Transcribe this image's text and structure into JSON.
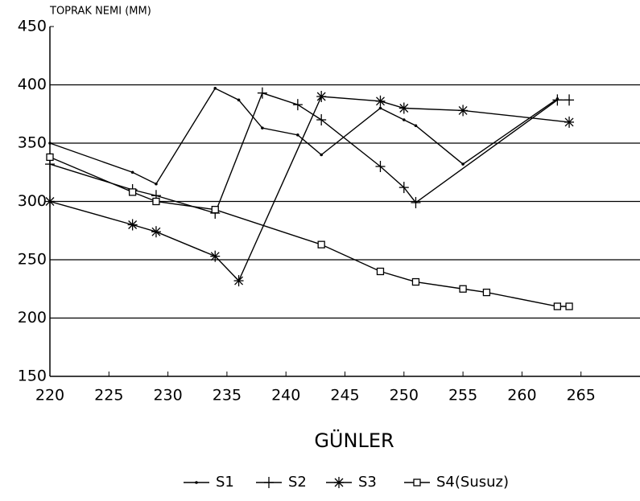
{
  "chart_data": {
    "type": "line",
    "y_axis_label": "TOPRAK NEMI (MM)",
    "x_axis_label": "GÜNLER",
    "xlim": [
      220,
      270
    ],
    "xticks": [
      220,
      225,
      230,
      235,
      240,
      245,
      250,
      255,
      260,
      265
    ],
    "ylim": [
      150,
      450
    ],
    "yticks": [
      150,
      200,
      250,
      300,
      350,
      400,
      450
    ],
    "grid": true,
    "legend": "bottom",
    "series": [
      {
        "name": "S1",
        "color": "#000000",
        "marker": "dot",
        "x": [
          220,
          227,
          229,
          234,
          236,
          238,
          241,
          243,
          248,
          250,
          251,
          255,
          263
        ],
        "values": [
          350,
          325,
          315,
          397,
          387,
          363,
          357,
          340,
          380,
          370,
          365,
          332,
          388
        ]
      },
      {
        "name": "S2",
        "color": "#000000",
        "marker": "plus",
        "x": [
          220,
          227,
          229,
          234,
          238,
          241,
          243,
          248,
          250,
          251,
          263,
          264
        ],
        "values": [
          332,
          310,
          305,
          290,
          393,
          383,
          370,
          330,
          312,
          299,
          387,
          387
        ]
      },
      {
        "name": "S3",
        "color": "#000000",
        "marker": "star",
        "x": [
          220,
          227,
          229,
          234,
          236,
          243,
          248,
          250,
          255,
          264
        ],
        "values": [
          300,
          280,
          274,
          253,
          232,
          390,
          386,
          380,
          378,
          368
        ]
      },
      {
        "name": "S4(Susuz)",
        "color": "#000000",
        "marker": "square",
        "x": [
          220,
          227,
          229,
          234,
          243,
          248,
          251,
          255,
          257,
          263,
          264
        ],
        "values": [
          338,
          308,
          300,
          293,
          263,
          240,
          231,
          225,
          222,
          210,
          210
        ]
      }
    ]
  }
}
